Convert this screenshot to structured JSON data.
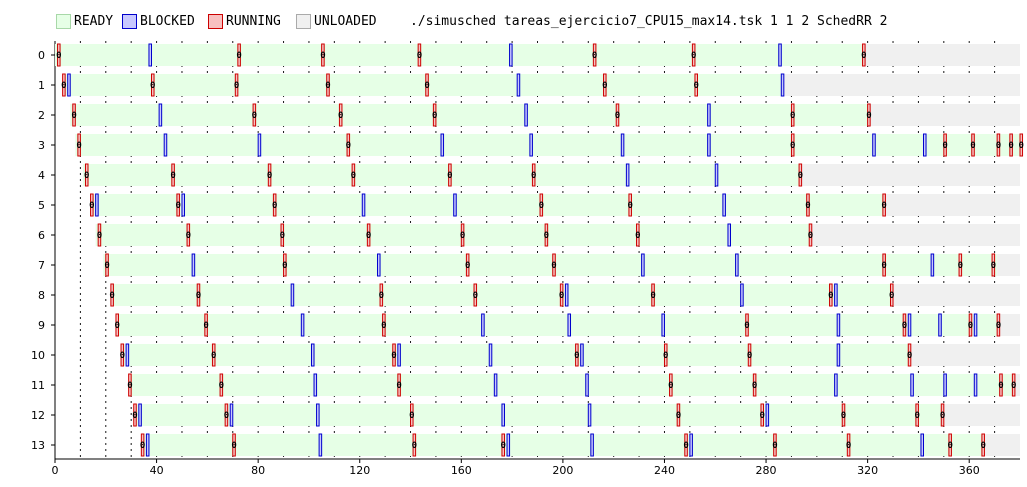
{
  "legend": {
    "items": [
      {
        "label": "READY",
        "fill": "#e6ffe6",
        "stroke": "#a8d8a8"
      },
      {
        "label": "BLOCKED",
        "fill": "#c8c8ff",
        "stroke": "#0000cc"
      },
      {
        "label": "RUNNING",
        "fill": "#f8c0c0",
        "stroke": "#cc0000"
      },
      {
        "label": "UNLOADED",
        "fill": "#f0f0f0",
        "stroke": "#aaaaaa"
      }
    ],
    "command": "./simusched tareas_ejercicio7_CPU15_max14.tsk 1 1 2 SchedRR 2"
  },
  "chart_data": {
    "type": "gantt",
    "title": "",
    "xlabel": "",
    "ylabel": "",
    "xlim": [
      0,
      380
    ],
    "x_ticks": [
      "0",
      "40",
      "80",
      "120",
      "160",
      "200",
      "240",
      "280",
      "320",
      "360"
    ],
    "y_categories": [
      "0",
      "1",
      "2",
      "3",
      "4",
      "5",
      "6",
      "7",
      "8",
      "9",
      "10",
      "11",
      "12",
      "13"
    ],
    "colors": {
      "ready": "#e6ffe6",
      "running": "#f8c0c0",
      "running_border": "#cc0000",
      "blocked": "#c8c8ff",
      "blocked_border": "#0000cc",
      "unloaded": "#f0f0f0",
      "grid": "#000000"
    },
    "task_label": "0",
    "tasks": [
      {
        "end": 319,
        "running": [
          1,
          72,
          105,
          143,
          212,
          251,
          318
        ],
        "blocked": [
          37,
          179,
          285
        ]
      },
      {
        "start": 3,
        "end": 287,
        "running": [
          3,
          38,
          71,
          107,
          146,
          216,
          252
        ],
        "blocked": [
          5,
          182,
          286
        ]
      },
      {
        "start": 6,
        "end": 321,
        "running": [
          7,
          78,
          112,
          149,
          221,
          290,
          320
        ],
        "blocked": [
          41,
          185,
          257
        ]
      },
      {
        "start": 8,
        "end": 380,
        "running": [
          9,
          115,
          290,
          350,
          361,
          371,
          376,
          380
        ],
        "blocked": [
          43,
          80,
          152,
          187,
          223,
          257,
          322,
          342
        ]
      },
      {
        "start": 11,
        "end": 294,
        "running": [
          12,
          46,
          84,
          117,
          155,
          188,
          293
        ],
        "blocked": [
          225,
          260
        ]
      },
      {
        "start": 14,
        "end": 327,
        "running": [
          14,
          48,
          86,
          191,
          226,
          296,
          326
        ],
        "blocked": [
          16,
          50,
          121,
          157,
          263
        ]
      },
      {
        "start": 16,
        "end": 298,
        "running": [
          17,
          52,
          89,
          123,
          160,
          193,
          229,
          297
        ],
        "blocked": [
          265
        ]
      },
      {
        "start": 19,
        "end": 371,
        "running": [
          20,
          90,
          162,
          196,
          326,
          356,
          369
        ],
        "blocked": [
          54,
          127,
          231,
          268,
          345
        ]
      },
      {
        "start": 22,
        "end": 330,
        "running": [
          22,
          56,
          128,
          165,
          199,
          235,
          305,
          329
        ],
        "blocked": [
          93,
          201,
          270,
          307
        ]
      },
      {
        "start": 24,
        "end": 372,
        "running": [
          24,
          59,
          129,
          272,
          334,
          360,
          371
        ],
        "blocked": [
          97,
          168,
          202,
          239,
          308,
          336,
          348,
          362
        ]
      },
      {
        "start": 27,
        "end": 337,
        "running": [
          26,
          62,
          133,
          205,
          240,
          273,
          336
        ],
        "blocked": [
          28,
          101,
          135,
          171,
          207,
          308
        ]
      },
      {
        "start": 29,
        "end": 378,
        "running": [
          29,
          65,
          135,
          242,
          275,
          372,
          377
        ],
        "blocked": [
          102,
          173,
          209,
          307,
          337,
          350,
          362
        ]
      },
      {
        "start": 32,
        "end": 350,
        "running": [
          31,
          67,
          140,
          245,
          278,
          310,
          339,
          349
        ],
        "blocked": [
          33,
          69,
          103,
          176,
          210,
          280
        ]
      },
      {
        "start": 34,
        "end": 366,
        "running": [
          34,
          70,
          141,
          176,
          248,
          283,
          312,
          352,
          365
        ],
        "blocked": [
          36,
          104,
          178,
          211,
          250,
          341
        ]
      }
    ]
  }
}
